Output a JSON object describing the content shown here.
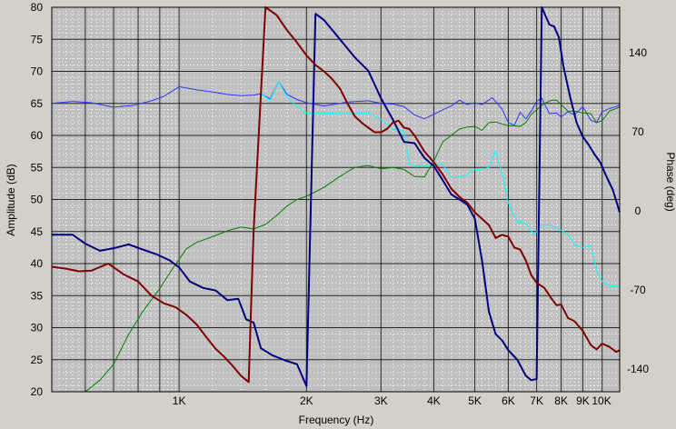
{
  "chart_data": {
    "type": "line",
    "xlabel": "Frequency (Hz)",
    "ylabel": "Amplitude (dB)",
    "y2label": "Phase (deg)",
    "xscale": "log",
    "xlim": [
      500,
      11000
    ],
    "ylim": [
      20,
      80
    ],
    "y2lim": [
      -160,
      180
    ],
    "grid": true,
    "colors": {
      "plot_background": "#c0c0c0",
      "major_grid": "#000000",
      "minor_grid": "#ffffff"
    },
    "x_ticks": [
      {
        "value": 1000,
        "label": "1K"
      },
      {
        "value": 2000,
        "label": "2K"
      },
      {
        "value": 3000,
        "label": "3K"
      },
      {
        "value": 4000,
        "label": "4K"
      },
      {
        "value": 5000,
        "label": "5K"
      },
      {
        "value": 6000,
        "label": "6K"
      },
      {
        "value": 7000,
        "label": "7K"
      },
      {
        "value": 8000,
        "label": "8K"
      },
      {
        "value": 9000,
        "label": "9K"
      },
      {
        "value": 10000,
        "label": "10K"
      }
    ],
    "y_ticks": [
      {
        "value": 20,
        "label": "20"
      },
      {
        "value": 25,
        "label": "25"
      },
      {
        "value": 30,
        "label": "30"
      },
      {
        "value": 35,
        "label": "35"
      },
      {
        "value": 40,
        "label": "40"
      },
      {
        "value": 45,
        "label": "45"
      },
      {
        "value": 50,
        "label": "50"
      },
      {
        "value": 55,
        "label": "55"
      },
      {
        "value": 60,
        "label": "60"
      },
      {
        "value": 65,
        "label": "65"
      },
      {
        "value": 70,
        "label": "70"
      },
      {
        "value": 75,
        "label": "75"
      },
      {
        "value": 80,
        "label": "80"
      }
    ],
    "y2_ticks": [
      {
        "value": 140,
        "label": "140"
      },
      {
        "value": 70,
        "label": "70"
      },
      {
        "value": 0,
        "label": "0"
      },
      {
        "value": -70,
        "label": "-70"
      },
      {
        "value": -140,
        "label": "-140"
      }
    ],
    "series": [
      {
        "axis": "left",
        "color": "#3333ff",
        "width": 1,
        "x": [
          500,
          560,
          620,
          700,
          780,
          860,
          920,
          1000,
          1100,
          1200,
          1300,
          1400,
          1500,
          1560,
          1640,
          1720,
          1800,
          1900,
          2000,
          2200,
          2500,
          2800,
          3000,
          3200,
          3400,
          3600,
          3800,
          4000,
          4200,
          4400,
          4600,
          4800,
          5000,
          5200,
          5500,
          5800,
          6000,
          6200,
          6400,
          6600,
          6800,
          7000,
          7200,
          7500,
          7800,
          8000,
          8300,
          8600,
          9000,
          9400,
          9700,
          10000,
          10400,
          10800,
          11000
        ],
        "y": [
          65,
          65.3,
          65.1,
          64.4,
          64.7,
          65.4,
          66.1,
          67.6,
          67.1,
          66.8,
          66.4,
          66.2,
          66.3,
          66.5,
          65.7,
          68.4,
          66.4,
          65.6,
          65.1,
          64.6,
          65.2,
          65.4,
          65.0,
          64.9,
          64.5,
          63.2,
          62.6,
          63.3,
          64.0,
          64.6,
          65.5,
          64.8,
          65.1,
          64.8,
          65.9,
          64.1,
          62.0,
          61.6,
          63.6,
          62.6,
          63.8,
          65.3,
          65.8,
          63.4,
          63.5,
          62.9,
          63.7,
          63.2,
          64.5,
          62.4,
          62.0,
          63.7,
          64.2,
          64.5,
          64.8
        ]
      },
      {
        "axis": "left",
        "color": "#00ffff",
        "width": 1,
        "x": [
          1560,
          1640,
          1720,
          1800,
          1900,
          2000,
          2200,
          2500,
          2800,
          3000,
          3200,
          3400,
          3500,
          3600,
          3800,
          4000,
          4200,
          4400,
          4600,
          4800,
          5000,
          5200,
          5400,
          5600,
          5800,
          6000,
          6300,
          6600,
          6900,
          7200,
          7500,
          7800,
          8000,
          8300,
          8600,
          9000,
          9400,
          9700,
          10000,
          10400,
          10800,
          11000
        ],
        "y": [
          66.5,
          65.5,
          68.4,
          66.0,
          64.5,
          63.5,
          63.5,
          63.4,
          63.5,
          62.5,
          61.0,
          60.8,
          55.5,
          55.3,
          55.3,
          55.3,
          55.5,
          53.4,
          53.5,
          53.9,
          54.7,
          54.7,
          55.0,
          57.5,
          54.0,
          49.5,
          46.5,
          46.3,
          44.5,
          46.0,
          46.0,
          45.5,
          45.2,
          44.5,
          43.0,
          42.5,
          42.9,
          39.0,
          37.2,
          36.5,
          36.5,
          36.5
        ]
      },
      {
        "axis": "left",
        "color": "#008000",
        "width": 1,
        "x": [
          600,
          650,
          700,
          760,
          820,
          900,
          960,
          1040,
          1100,
          1200,
          1300,
          1400,
          1500,
          1600,
          1700,
          1800,
          1900,
          2000,
          2100,
          2200,
          2400,
          2600,
          2800,
          3000,
          3200,
          3400,
          3600,
          3800,
          4000,
          4200,
          4400,
          4600,
          4800,
          5000,
          5200,
          5400,
          5600,
          5800,
          6000,
          6200,
          6400,
          6600,
          6800,
          7000,
          7300,
          7600,
          7800,
          8000,
          8300,
          8600,
          9000,
          9400,
          9700,
          10000,
          10400,
          10800,
          11000
        ],
        "y": [
          20,
          21.8,
          24.3,
          29.0,
          32.5,
          36.1,
          39.0,
          42.3,
          43.3,
          44.2,
          45.1,
          45.7,
          45.4,
          46.1,
          47.5,
          49.0,
          50.0,
          50.5,
          51.2,
          51.9,
          53.6,
          55.0,
          55.3,
          54.8,
          55.0,
          54.7,
          53.6,
          53.5,
          56.0,
          59.0,
          60.0,
          61.0,
          61.3,
          61.4,
          60.8,
          62.0,
          62.1,
          61.8,
          61.5,
          61.5,
          61.4,
          62.0,
          63.3,
          64.0,
          65.0,
          65.5,
          65.5,
          64.8,
          63.8,
          63.8,
          63.5,
          63.4,
          62.0,
          62.3,
          63.8,
          64.2,
          64.5
        ]
      },
      {
        "axis": "left",
        "color": "#000080",
        "width": 2,
        "x": [
          500,
          560,
          600,
          650,
          700,
          760,
          820,
          880,
          950,
          1000,
          1060,
          1140,
          1220,
          1300,
          1380,
          1440,
          1500,
          1560,
          1660,
          1780,
          1900,
          2000,
          2100,
          2200,
          2400,
          2600,
          2800,
          3000,
          3200,
          3400,
          3600,
          3800,
          4000,
          4200,
          4400,
          4600,
          4800,
          5000,
          5200,
          5400,
          5600,
          5800,
          6000,
          6300,
          6600,
          6800,
          7000,
          7200,
          7500,
          7700,
          7900,
          8100,
          8400,
          8700,
          9000,
          9300,
          9600,
          9900,
          10200,
          10600,
          11000
        ],
        "y": [
          44.5,
          44.5,
          43.1,
          42.0,
          42.4,
          43.0,
          42.2,
          41.5,
          40.5,
          39.4,
          37.2,
          36.2,
          35.8,
          34.3,
          34.5,
          31.3,
          30.8,
          26.8,
          25.7,
          24.9,
          24.3,
          20.9,
          79.0,
          78.0,
          75.0,
          72.2,
          70.1,
          65.8,
          62.5,
          59.0,
          58.8,
          56.5,
          55.2,
          53.0,
          50.8,
          50.0,
          49.2,
          47.0,
          40.5,
          32.5,
          29.0,
          28.0,
          26.5,
          25.0,
          22.5,
          21.8,
          22.0,
          80.0,
          77.3,
          77.0,
          75.3,
          70.8,
          66.0,
          62.0,
          59.8,
          58.5,
          57.0,
          55.8,
          53.8,
          51.5,
          48.0
        ]
      },
      {
        "axis": "left",
        "color": "#800000",
        "width": 2,
        "x": [
          500,
          540,
          580,
          620,
          680,
          740,
          800,
          860,
          920,
          980,
          1040,
          1100,
          1160,
          1220,
          1280,
          1340,
          1400,
          1460,
          1480,
          1500,
          1600,
          1700,
          1800,
          1900,
          2000,
          2100,
          2200,
          2300,
          2400,
          2500,
          2600,
          2700,
          2800,
          2900,
          3000,
          3100,
          3200,
          3300,
          3400,
          3500,
          3600,
          3800,
          4000,
          4200,
          4400,
          4600,
          4800,
          5000,
          5200,
          5400,
          5600,
          5800,
          6000,
          6200,
          6400,
          6600,
          6800,
          7000,
          7300,
          7600,
          7800,
          8000,
          8300,
          8600,
          9000,
          9400,
          9700,
          10000,
          10400,
          10800,
          11000
        ],
        "y": [
          39.5,
          39.2,
          38.8,
          38.9,
          40.0,
          38.3,
          37.2,
          35.0,
          33.8,
          33.2,
          32.0,
          30.5,
          28.5,
          26.7,
          25.4,
          24.0,
          22.5,
          21.5,
          33.5,
          45.0,
          80.0,
          78.8,
          76.4,
          74.5,
          72.5,
          71.0,
          70.0,
          68.8,
          67.3,
          65.0,
          63.0,
          62.0,
          61.2,
          60.5,
          60.5,
          61.0,
          62.0,
          62.3,
          61.2,
          61.0,
          60.0,
          57.5,
          55.8,
          53.9,
          51.7,
          50.4,
          49.5,
          48.0,
          47.0,
          46.0,
          44.0,
          44.5,
          44.2,
          42.5,
          42.2,
          40.5,
          38.2,
          37.0,
          36.2,
          34.5,
          33.5,
          33.6,
          31.5,
          31.0,
          29.5,
          27.3,
          26.6,
          27.5,
          27.0,
          26.2,
          26.5
        ]
      }
    ]
  }
}
